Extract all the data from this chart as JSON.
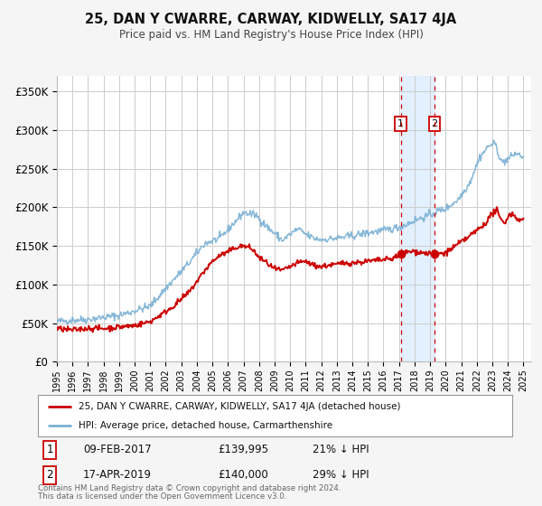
{
  "title": "25, DAN Y CWARRE, CARWAY, KIDWELLY, SA17 4JA",
  "subtitle": "Price paid vs. HM Land Registry's House Price Index (HPI)",
  "xlim_start": 1995.0,
  "xlim_end": 2025.5,
  "ylim": [
    0,
    370000
  ],
  "yticks": [
    0,
    50000,
    100000,
    150000,
    200000,
    250000,
    300000,
    350000
  ],
  "ytick_labels": [
    "£0",
    "£50K",
    "£100K",
    "£150K",
    "£200K",
    "£250K",
    "£300K",
    "£350K"
  ],
  "background_color": "#f5f5f5",
  "plot_bg_color": "#ffffff",
  "grid_color": "#cccccc",
  "sale1_date": 2017.11,
  "sale1_price": 139995,
  "sale1_label": "09-FEB-2017",
  "sale1_price_str": "£139,995",
  "sale1_pct": "21% ↓ HPI",
  "sale2_date": 2019.29,
  "sale2_price": 140000,
  "sale2_label": "17-APR-2019",
  "sale2_price_str": "£140,000",
  "sale2_pct": "29% ↓ HPI",
  "legend_property": "25, DAN Y CWARRE, CARWAY, KIDWELLY, SA17 4JA (detached house)",
  "legend_hpi": "HPI: Average price, detached house, Carmarthenshire",
  "footer1": "Contains HM Land Registry data © Crown copyright and database right 2024.",
  "footer2": "This data is licensed under the Open Government Licence v3.0.",
  "red_line_color": "#cc0000",
  "blue_line_color": "#7ab0d4",
  "shade_color": "#ddeeff",
  "label1_box_color": "#cc0000",
  "label2_box_color": "#cc0000"
}
